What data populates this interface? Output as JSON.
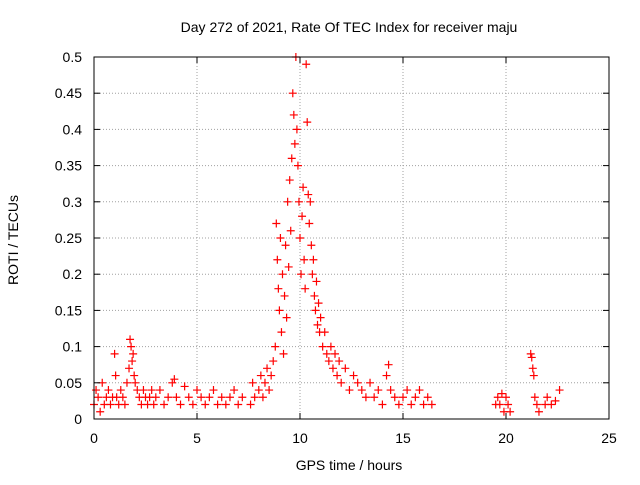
{
  "chart_data": {
    "type": "scatter",
    "title": "Day 272 of 2021, Rate Of TEC Index for receiver maju",
    "xlabel": "GPS time / hours",
    "ylabel": "ROTI / TECUs",
    "xlim": [
      0,
      25
    ],
    "ylim": [
      0,
      0.5
    ],
    "grid": true,
    "marker": "+",
    "marker_color": "#ff0000",
    "x_ticks": [
      0,
      5,
      10,
      15,
      20,
      25
    ],
    "x_tick_labels": [
      "0",
      "5",
      "10",
      "15",
      "20",
      "25"
    ],
    "y_ticks": [
      0,
      0.05,
      0.1,
      0.15,
      0.2,
      0.25,
      0.3,
      0.35,
      0.4,
      0.45,
      0.5
    ],
    "y_tick_labels": [
      "0",
      "0.05",
      "0.1",
      "0.15",
      "0.2",
      "0.25",
      "0.3",
      "0.35",
      "0.4",
      "0.45",
      "0.5"
    ],
    "series": [
      {
        "name": "ROTI",
        "points": [
          [
            0.0,
            0.02
          ],
          [
            0.1,
            0.04
          ],
          [
            0.2,
            0.03
          ],
          [
            0.3,
            0.01
          ],
          [
            0.4,
            0.05
          ],
          [
            0.5,
            0.02
          ],
          [
            0.6,
            0.03
          ],
          [
            0.7,
            0.04
          ],
          [
            0.8,
            0.02
          ],
          [
            0.9,
            0.03
          ],
          [
            1.0,
            0.09
          ],
          [
            1.05,
            0.06
          ],
          [
            1.1,
            0.03
          ],
          [
            1.2,
            0.02
          ],
          [
            1.3,
            0.04
          ],
          [
            1.4,
            0.03
          ],
          [
            1.5,
            0.02
          ],
          [
            1.6,
            0.05
          ],
          [
            1.7,
            0.07
          ],
          [
            1.75,
            0.11
          ],
          [
            1.8,
            0.1
          ],
          [
            1.85,
            0.08
          ],
          [
            1.9,
            0.09
          ],
          [
            1.95,
            0.06
          ],
          [
            2.0,
            0.05
          ],
          [
            2.1,
            0.04
          ],
          [
            2.2,
            0.03
          ],
          [
            2.3,
            0.02
          ],
          [
            2.4,
            0.04
          ],
          [
            2.5,
            0.03
          ],
          [
            2.6,
            0.02
          ],
          [
            2.7,
            0.03
          ],
          [
            2.8,
            0.04
          ],
          [
            2.9,
            0.02
          ],
          [
            3.0,
            0.03
          ],
          [
            3.2,
            0.04
          ],
          [
            3.4,
            0.02
          ],
          [
            3.6,
            0.03
          ],
          [
            3.8,
            0.05
          ],
          [
            3.9,
            0.055
          ],
          [
            4.0,
            0.03
          ],
          [
            4.2,
            0.02
          ],
          [
            4.4,
            0.045
          ],
          [
            4.6,
            0.03
          ],
          [
            4.8,
            0.02
          ],
          [
            5.0,
            0.04
          ],
          [
            5.2,
            0.03
          ],
          [
            5.4,
            0.02
          ],
          [
            5.6,
            0.03
          ],
          [
            5.8,
            0.04
          ],
          [
            6.0,
            0.02
          ],
          [
            6.2,
            0.03
          ],
          [
            6.4,
            0.02
          ],
          [
            6.6,
            0.03
          ],
          [
            6.8,
            0.04
          ],
          [
            7.0,
            0.02
          ],
          [
            7.2,
            0.03
          ],
          [
            7.6,
            0.02
          ],
          [
            7.7,
            0.05
          ],
          [
            7.8,
            0.03
          ],
          [
            8.0,
            0.04
          ],
          [
            8.1,
            0.06
          ],
          [
            8.2,
            0.03
          ],
          [
            8.3,
            0.05
          ],
          [
            8.4,
            0.07
          ],
          [
            8.5,
            0.04
          ],
          [
            8.6,
            0.06
          ],
          [
            8.7,
            0.08
          ],
          [
            8.8,
            0.1
          ],
          [
            8.85,
            0.27
          ],
          [
            8.9,
            0.22
          ],
          [
            8.95,
            0.18
          ],
          [
            9.0,
            0.15
          ],
          [
            9.05,
            0.25
          ],
          [
            9.1,
            0.12
          ],
          [
            9.15,
            0.2
          ],
          [
            9.2,
            0.09
          ],
          [
            9.25,
            0.17
          ],
          [
            9.3,
            0.24
          ],
          [
            9.35,
            0.14
          ],
          [
            9.4,
            0.3
          ],
          [
            9.45,
            0.21
          ],
          [
            9.5,
            0.33
          ],
          [
            9.55,
            0.26
          ],
          [
            9.6,
            0.36
          ],
          [
            9.65,
            0.45
          ],
          [
            9.7,
            0.42
          ],
          [
            9.75,
            0.38
          ],
          [
            9.8,
            0.5
          ],
          [
            9.85,
            0.4
          ],
          [
            9.9,
            0.35
          ],
          [
            9.95,
            0.3
          ],
          [
            10.0,
            0.25
          ],
          [
            10.05,
            0.2
          ],
          [
            10.1,
            0.28
          ],
          [
            10.15,
            0.32
          ],
          [
            10.2,
            0.22
          ],
          [
            10.25,
            0.18
          ],
          [
            10.3,
            0.49
          ],
          [
            10.35,
            0.41
          ],
          [
            10.4,
            0.31
          ],
          [
            10.45,
            0.27
          ],
          [
            10.5,
            0.3
          ],
          [
            10.55,
            0.24
          ],
          [
            10.6,
            0.2
          ],
          [
            10.65,
            0.22
          ],
          [
            10.7,
            0.17
          ],
          [
            10.75,
            0.15
          ],
          [
            10.8,
            0.19
          ],
          [
            10.85,
            0.13
          ],
          [
            10.9,
            0.16
          ],
          [
            10.95,
            0.12
          ],
          [
            11.0,
            0.14
          ],
          [
            11.1,
            0.1
          ],
          [
            11.2,
            0.12
          ],
          [
            11.3,
            0.09
          ],
          [
            11.4,
            0.08
          ],
          [
            11.5,
            0.1
          ],
          [
            11.6,
            0.07
          ],
          [
            11.7,
            0.09
          ],
          [
            11.8,
            0.06
          ],
          [
            11.9,
            0.08
          ],
          [
            12.0,
            0.05
          ],
          [
            12.2,
            0.07
          ],
          [
            12.4,
            0.04
          ],
          [
            12.6,
            0.06
          ],
          [
            12.8,
            0.05
          ],
          [
            13.0,
            0.04
          ],
          [
            13.2,
            0.03
          ],
          [
            13.4,
            0.05
          ],
          [
            13.6,
            0.03
          ],
          [
            13.8,
            0.04
          ],
          [
            14.0,
            0.02
          ],
          [
            14.2,
            0.06
          ],
          [
            14.3,
            0.075
          ],
          [
            14.4,
            0.04
          ],
          [
            14.6,
            0.03
          ],
          [
            14.8,
            0.02
          ],
          [
            15.0,
            0.03
          ],
          [
            15.2,
            0.04
          ],
          [
            15.4,
            0.02
          ],
          [
            15.6,
            0.03
          ],
          [
            15.8,
            0.04
          ],
          [
            16.0,
            0.02
          ],
          [
            16.2,
            0.03
          ],
          [
            16.4,
            0.02
          ],
          [
            19.5,
            0.02
          ],
          [
            19.6,
            0.03
          ],
          [
            19.7,
            0.02
          ],
          [
            19.8,
            0.035
          ],
          [
            19.9,
            0.01
          ],
          [
            20.0,
            0.03
          ],
          [
            20.1,
            0.02
          ],
          [
            20.2,
            0.01
          ],
          [
            21.2,
            0.09
          ],
          [
            21.25,
            0.085
          ],
          [
            21.3,
            0.07
          ],
          [
            21.35,
            0.06
          ],
          [
            21.4,
            0.03
          ],
          [
            21.5,
            0.02
          ],
          [
            21.6,
            0.01
          ],
          [
            21.9,
            0.02
          ],
          [
            22.0,
            0.03
          ],
          [
            22.2,
            0.02
          ],
          [
            22.4,
            0.025
          ],
          [
            22.6,
            0.04
          ]
        ]
      }
    ]
  }
}
